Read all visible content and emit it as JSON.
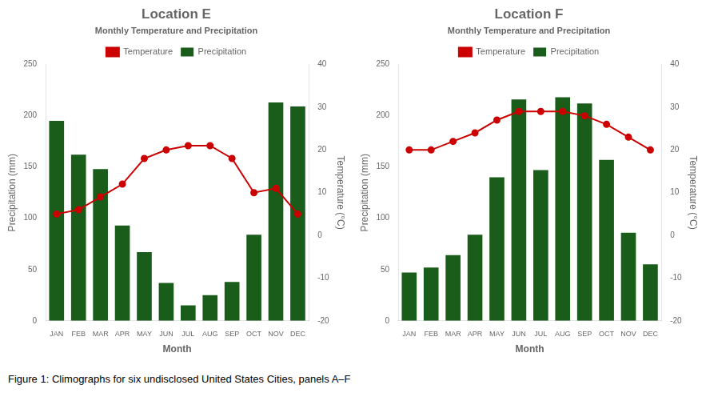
{
  "caption": "Figure 1: Climographs for six undisclosed United States Cities, panels A–F",
  "chart_data": [
    {
      "type": "bar",
      "title": "Location E",
      "subtitle": "Monthly Temperature and Precipitation",
      "xlabel": "Month",
      "ylabel": "Precipitation (mm)",
      "y2label": "Temperature (°C)",
      "categories": [
        "JAN",
        "FEB",
        "MAR",
        "APR",
        "MAY",
        "JUN",
        "JUL",
        "AUG",
        "SEP",
        "OCT",
        "NOV",
        "DEC"
      ],
      "series": [
        {
          "name": "Precipitation",
          "type": "bar",
          "color": "#1a5c1a",
          "values": [
            195,
            162,
            148,
            93,
            67,
            37,
            15,
            25,
            38,
            84,
            213,
            209
          ]
        },
        {
          "name": "Temperature",
          "type": "line",
          "color": "#cc0000",
          "marker": "circle",
          "axis": "y2",
          "values": [
            5,
            6,
            9,
            12,
            18,
            20,
            21,
            21,
            18,
            10,
            11,
            5
          ]
        }
      ],
      "ylim": [
        0,
        250
      ],
      "yticks": [
        0,
        50,
        100,
        150,
        200,
        250
      ],
      "y2lim": [
        -20,
        40
      ],
      "y2ticks": [
        -20,
        -10,
        0,
        10,
        20,
        30,
        40
      ],
      "grid": false,
      "legend": "top"
    },
    {
      "type": "bar",
      "title": "Location F",
      "subtitle": "Monthly Temperature and Precipitation",
      "xlabel": "Month",
      "ylabel": "Precipitation (mm)",
      "y2label": "Temperature (°C)",
      "categories": [
        "JAN",
        "FEB",
        "MAR",
        "APR",
        "MAY",
        "JUN",
        "JUL",
        "AUG",
        "SEP",
        "OCT",
        "NOV",
        "DEC"
      ],
      "series": [
        {
          "name": "Precipitation",
          "type": "bar",
          "color": "#1a5c1a",
          "values": [
            47,
            52,
            64,
            84,
            140,
            216,
            147,
            218,
            212,
            157,
            86,
            55
          ]
        },
        {
          "name": "Temperature",
          "type": "line",
          "color": "#cc0000",
          "marker": "circle",
          "axis": "y2",
          "values": [
            20,
            20,
            22,
            24,
            27,
            29,
            29,
            29,
            28,
            26,
            23,
            20
          ]
        }
      ],
      "ylim": [
        0,
        250
      ],
      "yticks": [
        0,
        50,
        100,
        150,
        200,
        250
      ],
      "y2lim": [
        -20,
        40
      ],
      "y2ticks": [
        -20,
        -10,
        0,
        10,
        20,
        30,
        40
      ],
      "grid": false,
      "legend": "top"
    }
  ]
}
